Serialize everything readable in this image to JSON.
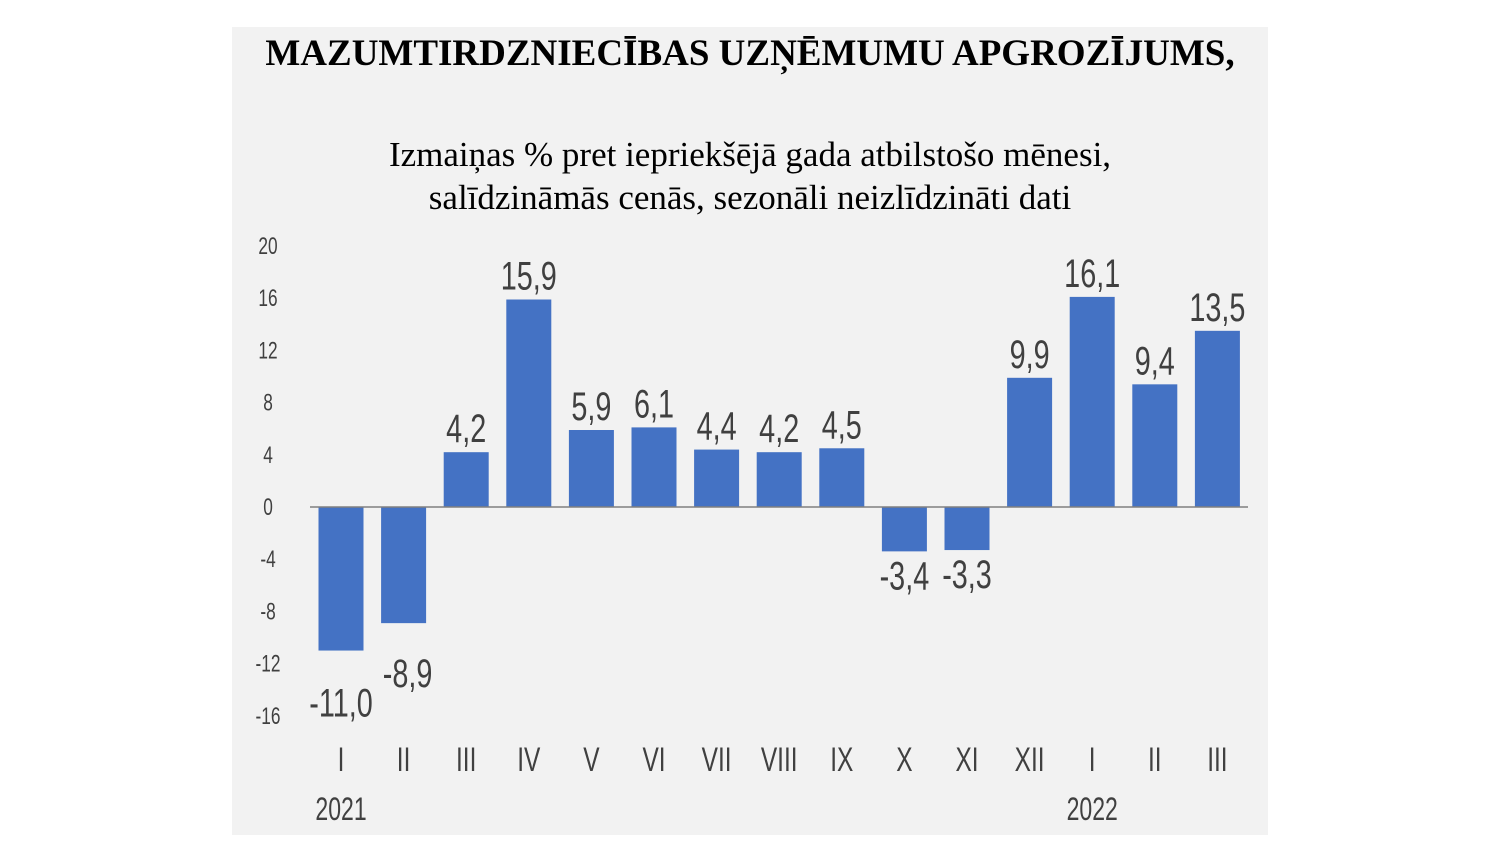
{
  "chart_data": {
    "type": "bar",
    "title": "MAZUMTIRDZNIECĪBAS UZŅĒMUMU APGROZĪJUMS,",
    "subtitle_line1": "Izmaiņas % pret iepriekšējā gada atbilstošo mēnesi,",
    "subtitle_line2": "salīdzināmās cenās, sezonāli neizlīdzināti dati",
    "categories": [
      "I",
      "II",
      "III",
      "IV",
      "V",
      "VI",
      "VII",
      "VIII",
      "IX",
      "X",
      "XI",
      "XII",
      "I",
      "II",
      "III"
    ],
    "year_labels": [
      {
        "category_index": 0,
        "label": "2021"
      },
      {
        "category_index": 12,
        "label": "2022"
      }
    ],
    "values": [
      -11.0,
      -8.9,
      4.2,
      15.9,
      5.9,
      6.1,
      4.4,
      4.2,
      4.5,
      -3.4,
      -3.3,
      9.9,
      16.1,
      9.4,
      13.5
    ],
    "data_labels": [
      "-11,0",
      "-8,9",
      "4,2",
      "15,9",
      "5,9",
      "6,1",
      "4,4",
      "4,2",
      "4,5",
      "-3,4",
      "-3,3",
      "9,9",
      "16,1",
      "9,4",
      "13,5"
    ],
    "yticks": [
      20,
      16,
      12,
      8,
      4,
      0,
      -4,
      -8,
      -12,
      -16
    ],
    "ylim": [
      -16,
      20
    ],
    "xlabel": "",
    "ylabel": "",
    "grid": false,
    "bar_color": "#4472c4",
    "background": "#f2f2f2"
  }
}
